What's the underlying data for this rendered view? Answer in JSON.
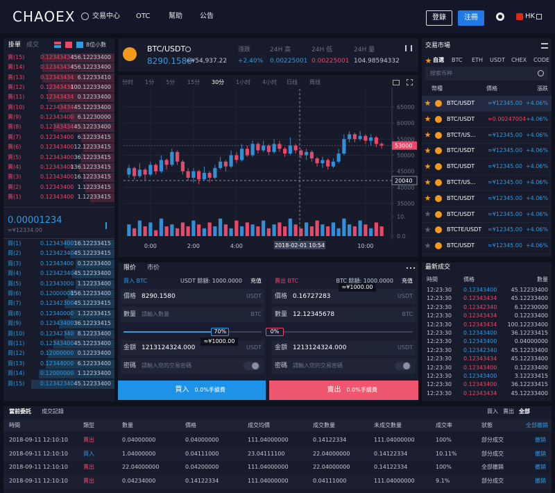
{
  "nav": {
    "logo": "CHAOEX",
    "items": [
      "交易中心",
      "OTC",
      "幫助",
      "公告"
    ],
    "login": "登錄",
    "register": "注冊",
    "lang": "HK"
  },
  "orderbook": {
    "tabs": [
      "掛單",
      "成交"
    ],
    "decimals": "8位小數",
    "sell": [
      {
        "label": "賣(15)",
        "price": "0.12343434",
        "amount": "456.12233400",
        "depth": 65
      },
      {
        "label": "賣(14)",
        "price": "0.12343434",
        "amount": "456.12233400",
        "depth": 65
      },
      {
        "label": "賣(13)",
        "price": "0.12343434",
        "amount": "6.12233410",
        "depth": 65
      },
      {
        "label": "賣(12)",
        "price": "0.12343434",
        "amount": "100.12233400",
        "depth": 60
      },
      {
        "label": "賣(11)",
        "price": "0.12343434",
        "amount": "0.12233400",
        "depth": 60
      },
      {
        "label": "賣(10)",
        "price": "0.12343434",
        "amount": "45.12233400",
        "depth": 50
      },
      {
        "label": "賣(9)",
        "price": "0.12343400",
        "amount": "6.12230000",
        "depth": 40
      },
      {
        "label": "賣(8)",
        "price": "0.12343434",
        "amount": "45.12233400",
        "depth": 55
      },
      {
        "label": "賣(7)",
        "price": "0.12343400",
        "amount": "6.12233415",
        "depth": 30
      },
      {
        "label": "賣(6)",
        "price": "0.12343400",
        "amount": "12.12233415",
        "depth": 28
      },
      {
        "label": "賣(5)",
        "price": "0.12343400",
        "amount": "36.12233415",
        "depth": 30
      },
      {
        "label": "賣(4)",
        "price": "0.12343400",
        "amount": "136.12233415",
        "depth": 32
      },
      {
        "label": "賣(3)",
        "price": "0.12343400",
        "amount": "16.12233415",
        "depth": 28
      },
      {
        "label": "賣(2)",
        "price": "0.12343400",
        "amount": "1.12233415",
        "depth": 26
      },
      {
        "label": "賣(1)",
        "price": "0.12343400",
        "amount": "1.12233415",
        "depth": 22
      }
    ],
    "last_price": "0.00001234",
    "last_price_cny": "≈¥12334.00",
    "buy": [
      {
        "label": "買(1)",
        "price": "0.12343400",
        "amount": "16.12233415",
        "depth": 45
      },
      {
        "label": "買(2)",
        "price": "0.12342340",
        "amount": "45.12233415",
        "depth": 40
      },
      {
        "label": "買(3)",
        "price": "0.12343400",
        "amount": "0.12233400",
        "depth": 35
      },
      {
        "label": "買(4)",
        "price": "0.12342340",
        "amount": "45.12233400",
        "depth": 38
      },
      {
        "label": "買(5)",
        "price": "0.12343000",
        "amount": "1.12233400",
        "depth": 35
      },
      {
        "label": "買(6)",
        "price": "0.12000000",
        "amount": "156.12233400",
        "depth": 42
      },
      {
        "label": "買(7)",
        "price": "0.12342300",
        "amount": "45.12233415",
        "depth": 45
      },
      {
        "label": "買(8)",
        "price": "0.12340000",
        "amount": "1.12233415",
        "depth": 40
      },
      {
        "label": "買(9)",
        "price": "0.12343400",
        "amount": "36.12233415",
        "depth": 50
      },
      {
        "label": "買(10)",
        "price": "0.12342340",
        "amount": "8.12233400",
        "depth": 45
      },
      {
        "label": "買(11)",
        "price": "0.12343400",
        "amount": "45.12233400",
        "depth": 55
      },
      {
        "label": "買(12)",
        "price": "0.12000000",
        "amount": "0.12233400",
        "depth": 60
      },
      {
        "label": "買(13)",
        "price": "0.12344000",
        "amount": "6.12233400",
        "depth": 62
      },
      {
        "label": "買(14)",
        "price": "0.12000000",
        "amount": "1.12233400",
        "depth": 68
      },
      {
        "label": "買(15)",
        "price": "0.12342340",
        "amount": "45.12233400",
        "depth": 75
      }
    ]
  },
  "ticker": {
    "pair": "BTC/USDT",
    "price": "8290.1580",
    "price_cny": "≈¥54,937.22",
    "stats": [
      {
        "label": "漲跌",
        "value": "+2.40%"
      },
      {
        "label": "24H 高",
        "value": "0.00225001"
      },
      {
        "label": "24H 低",
        "value": "0.00225001"
      },
      {
        "label": "24H 量",
        "value": "104.98594332"
      }
    ]
  },
  "chart_data": {
    "type": "candlestick",
    "intervals": [
      "分时",
      "1分",
      "5分",
      "15分",
      "30分",
      "1小时",
      "4小时",
      "日线",
      "周线"
    ],
    "categories": [
      null,
      null,
      null,
      null,
      "0:00",
      null,
      null,
      null,
      null,
      null,
      null,
      null,
      "2:00",
      null,
      null,
      null,
      null,
      null,
      null,
      null,
      "4:00",
      null,
      null,
      null,
      null,
      null,
      null,
      null,
      null,
      null,
      null,
      null,
      null,
      null,
      null,
      null,
      null,
      null,
      null,
      null,
      null,
      null,
      null,
      null,
      "10:00",
      null,
      null,
      null
    ],
    "open": [
      44000,
      46000,
      43500,
      45500,
      44000,
      47000,
      45000,
      48500,
      47000,
      51000,
      48000,
      45000,
      43000,
      45000,
      42500,
      44500,
      43000,
      46000,
      48000,
      46500,
      50000,
      48500,
      52000,
      50000,
      53500,
      51500,
      53000,
      51000,
      53500,
      52000,
      50500,
      53000,
      51500,
      50000,
      51000,
      49000,
      47500,
      48500,
      46500,
      48000,
      50500,
      55000,
      56500,
      55000,
      56000,
      54500,
      55500,
      53500
    ],
    "high": [
      47000,
      46500,
      47500,
      46000,
      48000,
      47500,
      50000,
      49000,
      52000,
      51500,
      48500,
      46000,
      46000,
      45500,
      46500,
      45000,
      47000,
      49500,
      48500,
      51500,
      51000,
      53500,
      53000,
      54500,
      54000,
      54500,
      53500,
      55000,
      54500,
      52500,
      55500,
      53500,
      52000,
      52000,
      51500,
      49500,
      49500,
      49000,
      49000,
      52000,
      56500,
      57500,
      57000,
      57500,
      56500,
      56500,
      56000,
      54000
    ],
    "low": [
      43000,
      42500,
      43000,
      42000,
      43500,
      44000,
      44500,
      45500,
      46500,
      47000,
      44000,
      42000,
      41500,
      41000,
      42000,
      41500,
      42500,
      45500,
      45000,
      46000,
      47500,
      48000,
      49500,
      49500,
      50500,
      51000,
      50000,
      50500,
      51000,
      49500,
      50000,
      50500,
      49000,
      48500,
      48000,
      46500,
      46000,
      45500,
      46000,
      47500,
      50000,
      54000,
      54000,
      54500,
      53500,
      53000,
      52500,
      52000
    ],
    "close": [
      46000,
      43500,
      45500,
      44000,
      47000,
      45000,
      48500,
      47000,
      51000,
      48000,
      45000,
      43000,
      45000,
      42500,
      44500,
      43000,
      46000,
      48000,
      46500,
      50000,
      48500,
      52000,
      50000,
      53500,
      51500,
      53000,
      51000,
      53500,
      52000,
      50500,
      53000,
      51500,
      50000,
      51000,
      49000,
      47500,
      48500,
      46500,
      48000,
      50500,
      55000,
      56500,
      55000,
      56000,
      54500,
      55500,
      53500,
      53000
    ],
    "volume": [
      6,
      4,
      8,
      5,
      7,
      3,
      9,
      5,
      6,
      4,
      7,
      5,
      8,
      6,
      4,
      7,
      5,
      9,
      6,
      4,
      8,
      5,
      7,
      6,
      5,
      8,
      4,
      6,
      7,
      5,
      9,
      6,
      4,
      7,
      5,
      8,
      6,
      5,
      7,
      4,
      9,
      6,
      5,
      8,
      6,
      4,
      7,
      5
    ],
    "ylim": [
      33500,
      70600
    ],
    "yticks": [
      35000,
      40000,
      45000,
      50000,
      55000,
      60000,
      65000
    ],
    "y2lim": [
      0,
      10
    ],
    "y2ticks": [
      {
        "value": 0,
        "label": "0.0"
      },
      {
        "value": 10,
        "label": "10."
      }
    ],
    "grid": true,
    "up_color": "#2f8fd8",
    "down_color": "#e8486a",
    "last_price": 53000,
    "crosshair_value": "20040",
    "crosshair_time": "2018-02-01 10:54"
  },
  "trade": {
    "tabs": [
      "限价",
      "市价"
    ],
    "buy": {
      "title": "買入 BTC",
      "balance": "USDT 餘額: 1000.0000",
      "recharge": "充值",
      "price": {
        "label": "價格",
        "value": "8290.1580",
        "unit": "USDT"
      },
      "qty": {
        "label": "數量",
        "placeholder": "請輸入數量",
        "unit": "BTC"
      },
      "percent": 70,
      "percent_label": "70%",
      "cny": "≈¥1000.00",
      "amount": {
        "label": "金額",
        "value": "1213124324.000",
        "unit": "USDT"
      },
      "password": {
        "label": "密碼",
        "placeholder": "請輸入您的交易密碼"
      },
      "button": "買入",
      "fee": "0.0%手續費"
    },
    "sell": {
      "title": "賣出 BTC",
      "balance": "BTC 餘額: 1000.0000",
      "recharge": "充值",
      "price": {
        "label": "價格",
        "value": "0.16727283",
        "unit": "USDT"
      },
      "qty": {
        "label": "數量",
        "value": "12.12345678",
        "unit": "BTC"
      },
      "percent": 0,
      "percent_label": "0%",
      "cny": "≈¥1000.00",
      "amount": {
        "label": "金額",
        "value": "1213124324.000",
        "unit": "USDT"
      },
      "password": {
        "label": "密碼",
        "placeholder": "請輸入您的交易密碼"
      },
      "button": "賣出",
      "fee": "0.0%手續費"
    }
  },
  "market": {
    "title": "交易市場",
    "tabs": [
      "自選",
      "BTC",
      "ETH",
      "USDT",
      "CHEX",
      "CODE"
    ],
    "search": "搜索币种",
    "headers": [
      "幣種",
      "價格",
      "漲跌"
    ],
    "rows": [
      {
        "starred": true,
        "pair": "BTC/USDT",
        "price": "≈¥12345.00",
        "change": "+4.06%",
        "side": "buy"
      },
      {
        "starred": true,
        "pair": "BTC/USDT",
        "price": "≈0.00247004",
        "change": "+4.06%",
        "side": "sell"
      },
      {
        "starred": true,
        "pair": "BTCT/US...",
        "price": "≈¥12345.00",
        "change": "+4.06%",
        "side": "buy"
      },
      {
        "starred": true,
        "pair": "BTC/USDT",
        "price": "≈¥12345.00",
        "change": "+4.06%",
        "side": "buy"
      },
      {
        "starred": true,
        "pair": "BTC/USDT",
        "price": "≈¥12345.00",
        "change": "+4.06%",
        "side": "buy"
      },
      {
        "starred": true,
        "pair": "BTCT/US...",
        "price": "≈¥12345.00",
        "change": "+4.06%",
        "side": "buy"
      },
      {
        "starred": true,
        "pair": "BTC/USDT",
        "price": "≈¥12345.00",
        "change": "+4.06%",
        "side": "buy"
      },
      {
        "starred": false,
        "pair": "BTC/USDT",
        "price": "≈¥12345.00",
        "change": "+4.06%",
        "side": "buy"
      },
      {
        "starred": false,
        "pair": "BTCTE/USDT",
        "price": "≈¥12345.00",
        "change": "+4.06%",
        "side": "buy"
      },
      {
        "starred": false,
        "pair": "BTC/USDT",
        "price": "≈¥12345.00",
        "change": "+4.06%",
        "side": "buy"
      }
    ]
  },
  "trades": {
    "title": "最新成交",
    "headers": [
      "時間",
      "價格",
      "數量"
    ],
    "rows": [
      {
        "time": "12:23:30",
        "price": "0.12343400",
        "amount": "45.12233400",
        "side": "buy"
      },
      {
        "time": "12:23:30",
        "price": "0.12343434",
        "amount": "45.12233400",
        "side": "sell"
      },
      {
        "time": "12:23:30",
        "price": "0.12342340",
        "amount": "6.12230000",
        "side": "sell"
      },
      {
        "time": "12:23:30",
        "price": "0.12343434",
        "amount": "0.12233400",
        "side": "sell"
      },
      {
        "time": "12:23:30",
        "price": "0.12343434",
        "amount": "100.12233400",
        "side": "sell"
      },
      {
        "time": "12:23:30",
        "price": "0.12343400",
        "amount": "36.12233415",
        "side": "buy"
      },
      {
        "time": "12:23:30",
        "price": "0.12343400",
        "amount": "0.04000000",
        "side": "buy"
      },
      {
        "time": "12:23:30",
        "price": "0.12342340",
        "amount": "45.12233400",
        "side": "buy"
      },
      {
        "time": "12:23:30",
        "price": "0.12343434",
        "amount": "45.12233400",
        "side": "sell"
      },
      {
        "time": "12:23:30",
        "price": "0.12343400",
        "amount": "0.12233400",
        "side": "sell"
      },
      {
        "time": "12:23:30",
        "price": "0.12343400",
        "amount": "3.12233415",
        "side": "buy"
      },
      {
        "time": "12:23:30",
        "price": "0.12343400",
        "amount": "36.12233415",
        "side": "sell"
      },
      {
        "time": "12:23:30",
        "price": "0.12343434",
        "amount": "45.12233400",
        "side": "sell"
      }
    ]
  },
  "orders": {
    "tabs": [
      "當前委託",
      "成交記錄"
    ],
    "filters": [
      "買入",
      "賣出",
      "全部"
    ],
    "headers": [
      "時間",
      "類型",
      "數量",
      "價格",
      "成交均價",
      "成交數量",
      "未成交數量",
      "成交率",
      "狀態",
      "全部撤銷"
    ],
    "rows": [
      {
        "side": "sell",
        "cells": [
          "2018-09-11  12:10:10",
          "賣出",
          "0.04000000",
          "0.04000000",
          "111.04000000",
          "0.14122334",
          "111.04000000",
          "100%",
          "部分成交",
          "撤銷"
        ]
      },
      {
        "side": "buy",
        "cells": [
          "2018-09-11  12:10:10",
          "買入",
          "1.04000000",
          "0.04111000",
          "23.04111100",
          "22.04000000",
          "0.14122334",
          "10.11%",
          "部分成交",
          "撤銷"
        ]
      },
      {
        "side": "sell",
        "cells": [
          "2018-09-11  12:10:10",
          "賣出",
          "22.04000000",
          "0.04200000",
          "111.04000000",
          "22.04000000",
          "0.14122334",
          "100%",
          "全部撤銷",
          "撤銷"
        ]
      },
      {
        "side": "sell",
        "cells": [
          "2018-09-11  12:10:10",
          "賣出",
          "0.04234000",
          "0.14122334",
          "111.04000000",
          "0.04111000",
          "111.04000000",
          "9.1%",
          "部分成交",
          "撤銷"
        ]
      }
    ]
  }
}
